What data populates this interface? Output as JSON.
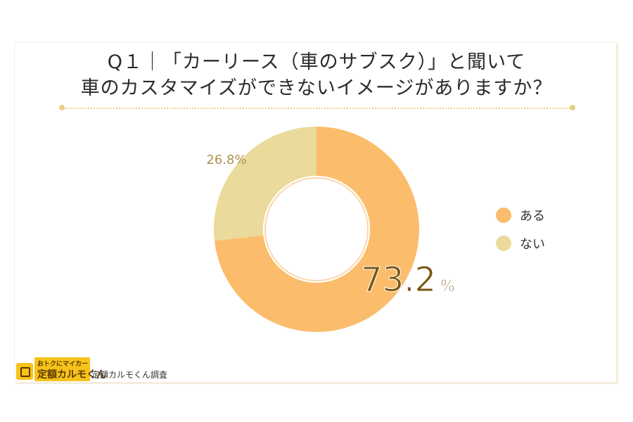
{
  "title": {
    "line1": "Q１｜「カーリース（車のサブスク）」と聞いて",
    "line2": "車のカスタマイズができないイメージがありますか？"
  },
  "chart_data": {
    "type": "pie",
    "categories": [
      "ある",
      "ない"
    ],
    "values": [
      73.2,
      26.8
    ],
    "unit": "%",
    "labels": [
      "73.2",
      "26.8%"
    ],
    "colors": [
      "#fbbd6c",
      "#eadb9c"
    ],
    "legend": "right"
  },
  "legend": {
    "items": [
      {
        "label": "ある",
        "color": "#fbbd6c"
      },
      {
        "label": "ない",
        "color": "#eadb9c"
      }
    ]
  },
  "footer": {
    "logo_line1": "おトクにマイカー",
    "logo_line2": "定額カルモくん",
    "source": "定額カルモくん調査"
  }
}
